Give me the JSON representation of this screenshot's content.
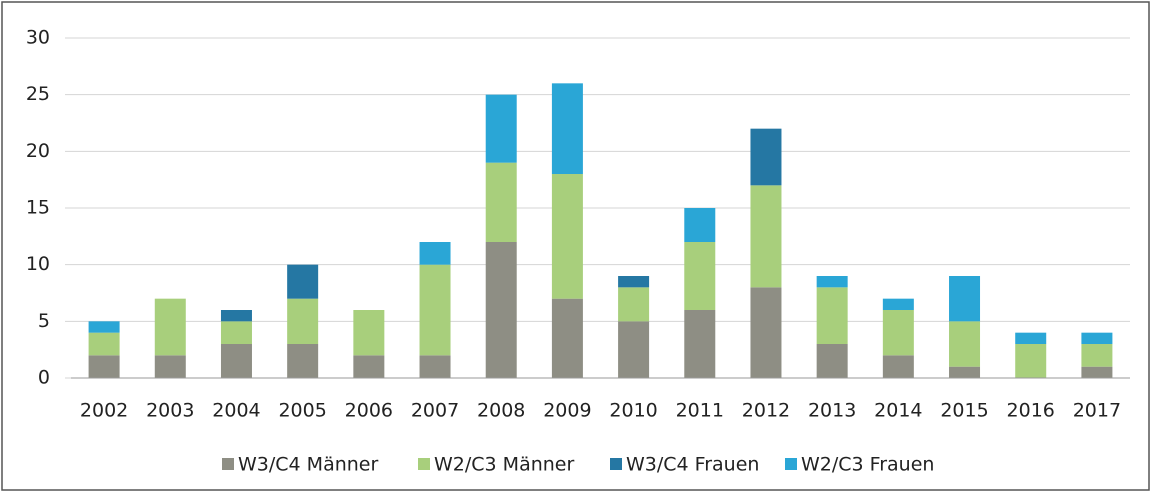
{
  "chart_data": {
    "type": "stacked_bar",
    "categories": [
      "2002",
      "2003",
      "2004",
      "2005",
      "2006",
      "2007",
      "2008",
      "2009",
      "2010",
      "2011",
      "2012",
      "2013",
      "2014",
      "2015",
      "2016",
      "2017"
    ],
    "series": [
      {
        "name": "W3/C4 Männer",
        "color": "#8e8e84",
        "values": [
          2,
          2,
          3,
          3,
          2,
          2,
          12,
          7,
          5,
          6,
          8,
          3,
          2,
          1,
          0,
          1
        ]
      },
      {
        "name": "W2/C3 Männer",
        "color": "#a8cf7c",
        "values": [
          2,
          5,
          2,
          4,
          4,
          8,
          7,
          11,
          3,
          6,
          9,
          5,
          4,
          4,
          3,
          2
        ]
      },
      {
        "name": "W3/C4 Frauen",
        "color": "#2577a3",
        "values": [
          0,
          0,
          1,
          3,
          0,
          0,
          0,
          0,
          1,
          0,
          5,
          0,
          0,
          0,
          0,
          0
        ]
      },
      {
        "name": "W2/C3 Frauen",
        "color": "#2aa6d6",
        "values": [
          1,
          0,
          0,
          0,
          0,
          2,
          6,
          8,
          0,
          3,
          0,
          1,
          1,
          4,
          1,
          1
        ]
      }
    ],
    "ylim": [
      0,
      30
    ],
    "yticks": [
      0,
      5,
      10,
      15,
      20,
      25,
      30
    ],
    "grid": true,
    "legend": "bottom"
  }
}
